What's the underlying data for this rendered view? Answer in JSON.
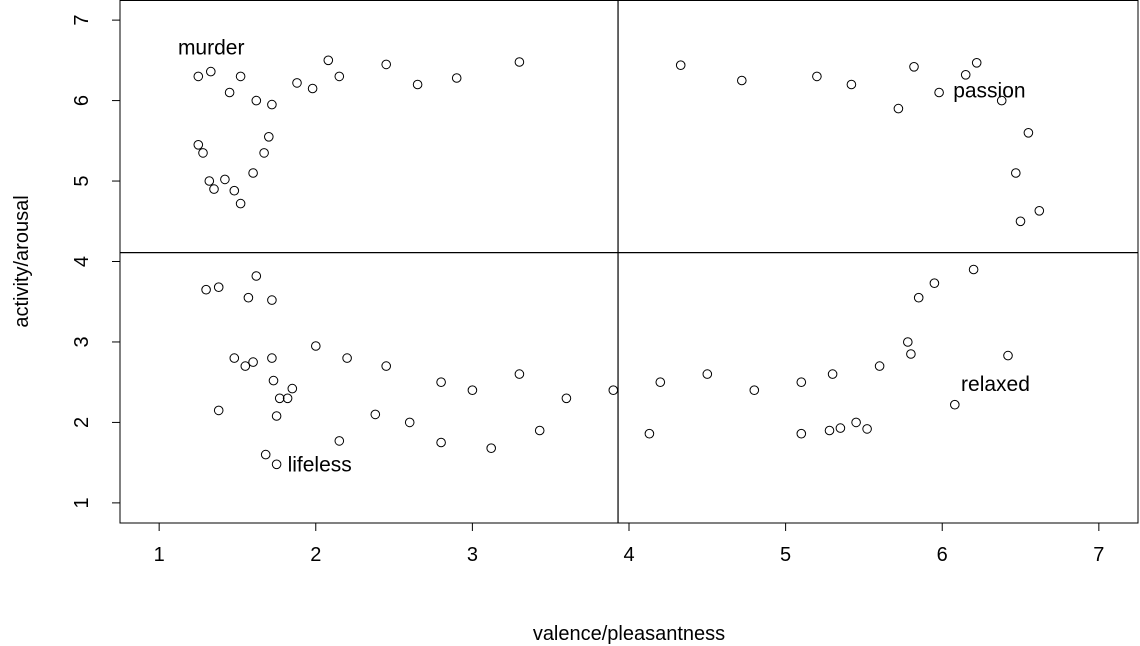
{
  "chart_data": {
    "type": "scatter",
    "xlabel": "valence/pleasantness",
    "ylabel": "activity/arousal",
    "xlim": [
      0.75,
      7.25
    ],
    "ylim": [
      0.75,
      7.25
    ],
    "xticks": [
      "1",
      "2",
      "3",
      "4",
      "5",
      "6",
      "7"
    ],
    "yticks": [
      "1",
      "2",
      "3",
      "4",
      "5",
      "6",
      "7"
    ],
    "grid": false,
    "reference_lines": {
      "vertical_x": 3.93,
      "horizontal_y": 4.11
    },
    "annotations": [
      {
        "text": "murder",
        "x": 1.12,
        "y": 6.57
      },
      {
        "text": "passion",
        "x": 6.07,
        "y": 6.04
      },
      {
        "text": "relaxed",
        "x": 6.12,
        "y": 2.39
      },
      {
        "text": "lifeless",
        "x": 1.82,
        "y": 1.39
      }
    ],
    "series": [
      {
        "marker": "open-circle",
        "color": "#000000",
        "points": [
          [
            1.25,
            6.3
          ],
          [
            1.33,
            6.36
          ],
          [
            1.45,
            6.1
          ],
          [
            1.52,
            6.3
          ],
          [
            1.62,
            6.0
          ],
          [
            1.72,
            5.95
          ],
          [
            1.88,
            6.22
          ],
          [
            1.98,
            6.15
          ],
          [
            2.08,
            6.5
          ],
          [
            2.15,
            6.3
          ],
          [
            2.45,
            6.45
          ],
          [
            2.65,
            6.2
          ],
          [
            2.9,
            6.28
          ],
          [
            3.3,
            6.48
          ],
          [
            4.33,
            6.44
          ],
          [
            4.72,
            6.25
          ],
          [
            5.2,
            6.3
          ],
          [
            5.42,
            6.2
          ],
          [
            5.82,
            6.42
          ],
          [
            6.22,
            6.47
          ],
          [
            6.15,
            6.32
          ],
          [
            6.38,
            6.0
          ],
          [
            5.98,
            6.1
          ],
          [
            5.72,
            5.9
          ],
          [
            1.25,
            5.45
          ],
          [
            1.28,
            5.35
          ],
          [
            1.32,
            5.0
          ],
          [
            1.35,
            4.9
          ],
          [
            1.42,
            5.02
          ],
          [
            1.48,
            4.88
          ],
          [
            1.52,
            4.72
          ],
          [
            1.6,
            5.1
          ],
          [
            1.67,
            5.35
          ],
          [
            1.7,
            5.55
          ],
          [
            1.3,
            3.65
          ],
          [
            1.38,
            3.68
          ],
          [
            1.38,
            2.15
          ],
          [
            1.48,
            2.8
          ],
          [
            1.55,
            2.7
          ],
          [
            1.6,
            2.75
          ],
          [
            1.62,
            3.82
          ],
          [
            1.57,
            3.55
          ],
          [
            1.72,
            3.52
          ],
          [
            1.72,
            2.8
          ],
          [
            1.73,
            2.52
          ],
          [
            1.77,
            2.3
          ],
          [
            1.75,
            2.08
          ],
          [
            1.82,
            2.3
          ],
          [
            1.85,
            2.42
          ],
          [
            1.68,
            1.6
          ],
          [
            1.75,
            1.48
          ],
          [
            2.15,
            1.77
          ],
          [
            2.38,
            2.1
          ],
          [
            2.6,
            2.0
          ],
          [
            2.8,
            1.75
          ],
          [
            3.12,
            1.68
          ],
          [
            3.43,
            1.9
          ],
          [
            4.13,
            1.86
          ],
          [
            5.1,
            1.86
          ],
          [
            5.28,
            1.9
          ],
          [
            5.35,
            1.93
          ],
          [
            5.45,
            2.0
          ],
          [
            5.52,
            1.92
          ],
          [
            6.08,
            2.22
          ],
          [
            6.42,
            2.83
          ],
          [
            6.5,
            4.5
          ],
          [
            6.62,
            4.63
          ],
          [
            6.55,
            5.6
          ],
          [
            6.47,
            5.1
          ],
          [
            5.95,
            3.73
          ],
          [
            5.78,
            3.0
          ],
          [
            5.85,
            3.55
          ],
          [
            2.0,
            2.95
          ],
          [
            2.2,
            2.8
          ],
          [
            2.45,
            2.7
          ],
          [
            2.8,
            2.5
          ],
          [
            3.0,
            2.4
          ],
          [
            3.3,
            2.6
          ],
          [
            3.6,
            2.3
          ],
          [
            3.9,
            2.4
          ],
          [
            4.2,
            2.5
          ],
          [
            4.5,
            2.6
          ],
          [
            4.8,
            2.4
          ],
          [
            5.1,
            2.5
          ],
          [
            5.3,
            2.6
          ],
          [
            5.6,
            2.7
          ],
          [
            5.8,
            2.85
          ],
          [
            6.2,
            3.9
          ]
        ]
      }
    ]
  }
}
